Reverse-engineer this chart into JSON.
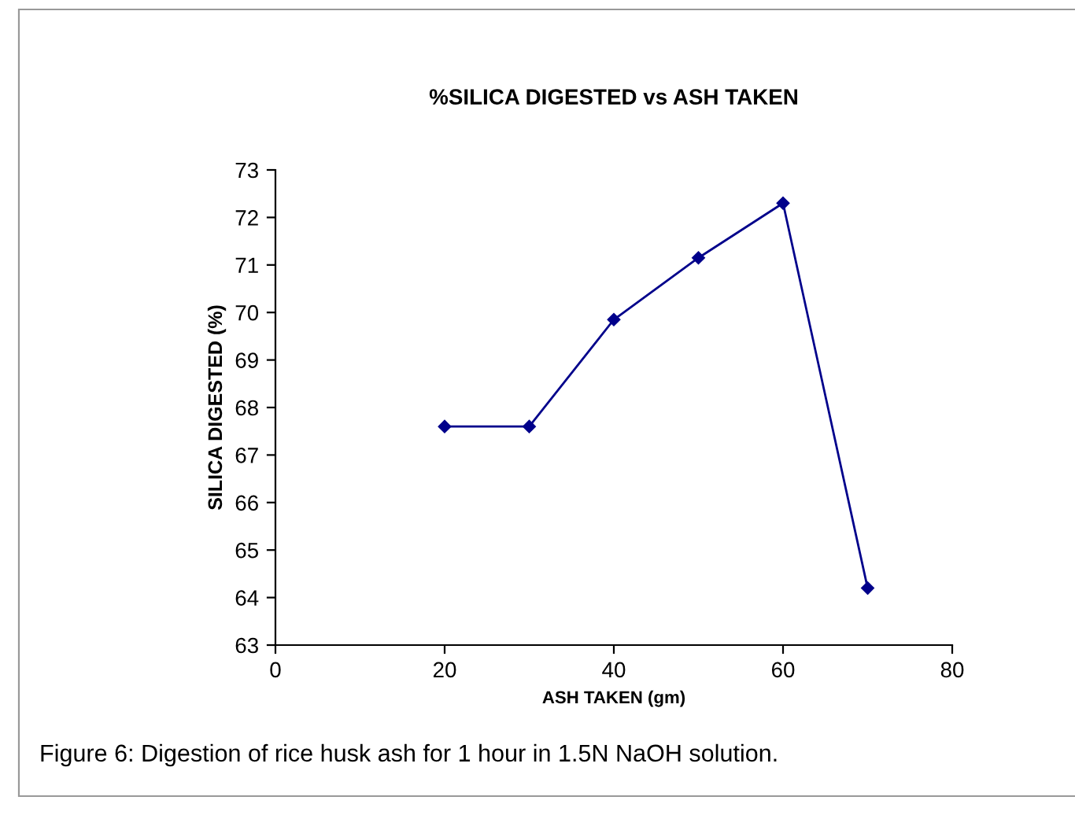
{
  "chart_data": {
    "type": "line",
    "title": "%SILICA DIGESTED vs ASH TAKEN",
    "xlabel": "ASH TAKEN (gm)",
    "ylabel": "SILICA DIGESTED (%)",
    "x": [
      20,
      30,
      40,
      50,
      60,
      70
    ],
    "series": [
      {
        "color": "#00008b",
        "values": [
          67.6,
          67.6,
          69.85,
          71.15,
          72.3,
          64.2
        ]
      }
    ],
    "xlim": [
      0,
      80
    ],
    "xticks": [
      0,
      20,
      40,
      60,
      80
    ],
    "ylim": [
      63,
      73
    ],
    "yticks": [
      63,
      64,
      65,
      66,
      67,
      68,
      69,
      70,
      71,
      72,
      73
    ],
    "grid": false,
    "legend": false,
    "marker": "diamond",
    "line_style": "solid",
    "annotations": [
      "Figure 6: Digestion of rice husk ash for 1 hour in 1.5N NaOH solution."
    ]
  }
}
